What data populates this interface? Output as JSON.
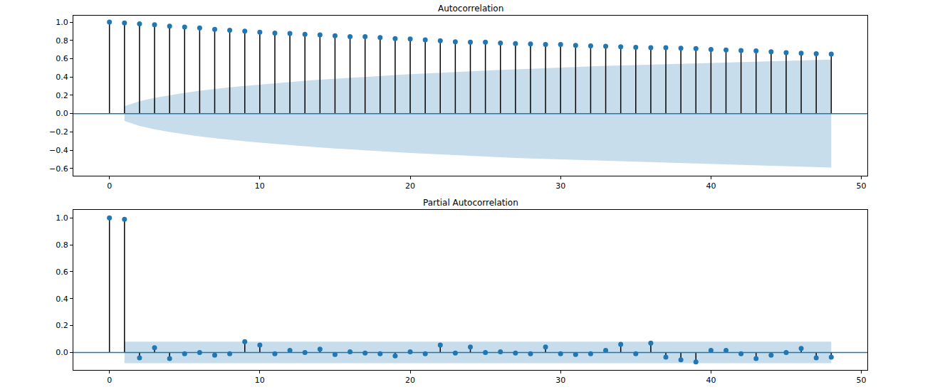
{
  "chart_data": [
    {
      "type": "stem",
      "title": "Autocorrelation",
      "color": "#1f77b4",
      "grid": false,
      "x": [
        0,
        1,
        2,
        3,
        4,
        5,
        6,
        7,
        8,
        9,
        10,
        11,
        12,
        13,
        14,
        15,
        16,
        17,
        18,
        19,
        20,
        21,
        22,
        23,
        24,
        25,
        26,
        27,
        28,
        29,
        30,
        31,
        32,
        33,
        34,
        35,
        36,
        37,
        38,
        39,
        40,
        41,
        42,
        43,
        44,
        45,
        46,
        47,
        48
      ],
      "values": [
        1.0,
        0.99,
        0.98,
        0.97,
        0.955,
        0.945,
        0.935,
        0.92,
        0.91,
        0.9,
        0.89,
        0.88,
        0.875,
        0.865,
        0.86,
        0.85,
        0.84,
        0.84,
        0.83,
        0.82,
        0.815,
        0.805,
        0.795,
        0.785,
        0.78,
        0.78,
        0.77,
        0.765,
        0.76,
        0.755,
        0.755,
        0.745,
        0.74,
        0.735,
        0.73,
        0.725,
        0.72,
        0.72,
        0.715,
        0.71,
        0.7,
        0.695,
        0.69,
        0.685,
        0.675,
        0.665,
        0.66,
        0.655,
        0.65
      ],
      "band": {
        "x": [
          1,
          2,
          3,
          4,
          5,
          6,
          7,
          8,
          9,
          10,
          11,
          12,
          13,
          14,
          15,
          16,
          17,
          18,
          19,
          20,
          21,
          22,
          23,
          24,
          25,
          26,
          27,
          28,
          29,
          30,
          31,
          32,
          33,
          34,
          35,
          36,
          37,
          38,
          39,
          40,
          41,
          42,
          43,
          44,
          45,
          46,
          47,
          48
        ],
        "upper": [
          0.08,
          0.135,
          0.172,
          0.202,
          0.227,
          0.249,
          0.269,
          0.287,
          0.303,
          0.318,
          0.332,
          0.345,
          0.358,
          0.37,
          0.381,
          0.392,
          0.402,
          0.412,
          0.421,
          0.43,
          0.439,
          0.447,
          0.455,
          0.463,
          0.47,
          0.477,
          0.484,
          0.491,
          0.497,
          0.503,
          0.509,
          0.515,
          0.521,
          0.526,
          0.531,
          0.536,
          0.541,
          0.546,
          0.551,
          0.556,
          0.56,
          0.565,
          0.569,
          0.573,
          0.577,
          0.581,
          0.585,
          0.59
        ],
        "lower": [
          -0.08,
          -0.135,
          -0.172,
          -0.202,
          -0.227,
          -0.249,
          -0.269,
          -0.287,
          -0.303,
          -0.318,
          -0.332,
          -0.345,
          -0.358,
          -0.37,
          -0.381,
          -0.392,
          -0.402,
          -0.412,
          -0.421,
          -0.43,
          -0.439,
          -0.447,
          -0.455,
          -0.463,
          -0.47,
          -0.477,
          -0.484,
          -0.491,
          -0.497,
          -0.503,
          -0.509,
          -0.515,
          -0.521,
          -0.526,
          -0.531,
          -0.536,
          -0.541,
          -0.546,
          -0.551,
          -0.556,
          -0.56,
          -0.565,
          -0.569,
          -0.573,
          -0.577,
          -0.581,
          -0.585,
          -0.59
        ]
      },
      "xlim": [
        -2.4,
        50.4
      ],
      "xticks": [
        0,
        10,
        20,
        30,
        40,
        50
      ],
      "ylim": [
        -0.68,
        1.07
      ],
      "yticks": [
        {
          "value": -0.6,
          "label": "−0.6"
        },
        {
          "value": -0.4,
          "label": "−0.4"
        },
        {
          "value": -0.2,
          "label": "−0.2"
        },
        {
          "value": 0,
          "label": "0.0"
        },
        {
          "value": 0.2,
          "label": "0.2"
        },
        {
          "value": 0.4,
          "label": "0.4"
        },
        {
          "value": 0.6,
          "label": "0.6"
        },
        {
          "value": 0.8,
          "label": "0.8"
        },
        {
          "value": 1,
          "label": "1.0"
        }
      ]
    },
    {
      "type": "stem",
      "title": "Partial Autocorrelation",
      "color": "#1f77b4",
      "grid": false,
      "x": [
        0,
        1,
        2,
        3,
        4,
        5,
        6,
        7,
        8,
        9,
        10,
        11,
        12,
        13,
        14,
        15,
        16,
        17,
        18,
        19,
        20,
        21,
        22,
        23,
        24,
        25,
        26,
        27,
        28,
        29,
        30,
        31,
        32,
        33,
        34,
        35,
        36,
        37,
        38,
        39,
        40,
        41,
        42,
        43,
        44,
        45,
        46,
        47,
        48
      ],
      "values": [
        1.0,
        0.99,
        -0.04,
        0.035,
        -0.045,
        -0.01,
        0.0,
        -0.02,
        -0.01,
        0.08,
        0.055,
        -0.01,
        0.015,
        0.0,
        0.025,
        -0.015,
        0.005,
        -0.005,
        -0.01,
        -0.025,
        0.005,
        -0.01,
        0.055,
        -0.005,
        0.04,
        0.0,
        0.005,
        -0.005,
        -0.01,
        0.04,
        -0.01,
        -0.015,
        -0.01,
        0.015,
        0.06,
        -0.01,
        0.07,
        -0.035,
        -0.055,
        -0.07,
        0.015,
        0.015,
        -0.01,
        -0.045,
        -0.02,
        0.0,
        0.03,
        -0.04,
        -0.035
      ],
      "band": {
        "x": [
          1,
          48
        ],
        "upper": [
          0.08,
          0.08
        ],
        "lower": [
          -0.08,
          -0.08
        ]
      },
      "xlim": [
        -2.4,
        50.4
      ],
      "xticks": [
        0,
        10,
        20,
        30,
        40,
        50
      ],
      "ylim": [
        -0.13,
        1.06
      ],
      "yticks": [
        {
          "value": 0,
          "label": "0.0"
        },
        {
          "value": 0.2,
          "label": "0.2"
        },
        {
          "value": 0.4,
          "label": "0.4"
        },
        {
          "value": 0.6,
          "label": "0.6"
        },
        {
          "value": 0.8,
          "label": "0.8"
        },
        {
          "value": 1,
          "label": "1.0"
        }
      ]
    }
  ]
}
